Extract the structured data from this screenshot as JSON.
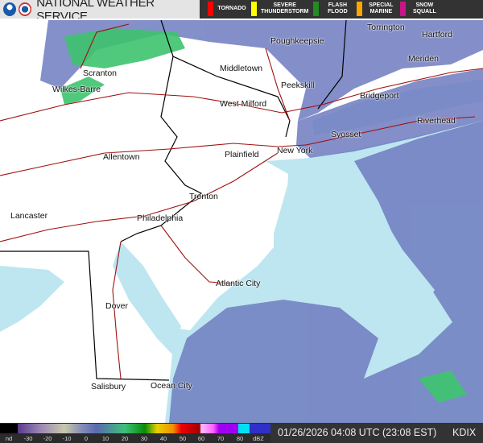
{
  "header": {
    "title": "NATIONAL WEATHER SERVICE"
  },
  "warnings": [
    {
      "label": "TORNADO",
      "color": "#ff0000"
    },
    {
      "label": "SEVERE\nTHUNDERSTORM",
      "color": "#ffff00"
    },
    {
      "label": "FLASH\nFLOOD",
      "color": "#228b22"
    },
    {
      "label": "SPECIAL\nMARINE",
      "color": "#ffa500"
    },
    {
      "label": "SNOW\nSQUALL",
      "color": "#c71585"
    }
  ],
  "cities": [
    "Torrington",
    "Hartford",
    "Poughkeepsie",
    "Meriden",
    "Scranton",
    "Middletown",
    "Peekskill",
    "Wilkes-Barre",
    "Bridgeport",
    "West Milford",
    "Riverhead",
    "Syosset",
    "Plainfield",
    "New York",
    "Allentown",
    "Trenton",
    "Lancaster",
    "Philadelphia",
    "Atlantic City",
    "Dover",
    "Salisbury",
    "Ocean City"
  ],
  "legend": {
    "labels": [
      "nd",
      "-30",
      "-20",
      "-10",
      "0",
      "10",
      "20",
      "30",
      "40",
      "50",
      "60",
      "70",
      "80",
      "dBZ"
    ]
  },
  "footer": {
    "timestamp": "01/26/2026 04:08 UTC (23:08 EST)",
    "station": "KDIX"
  },
  "colors": {
    "ocean": "#bde6f0",
    "radar_light": "#6f7cc0",
    "radar_heavy": "#3ec46e",
    "roads": "#a01010"
  }
}
